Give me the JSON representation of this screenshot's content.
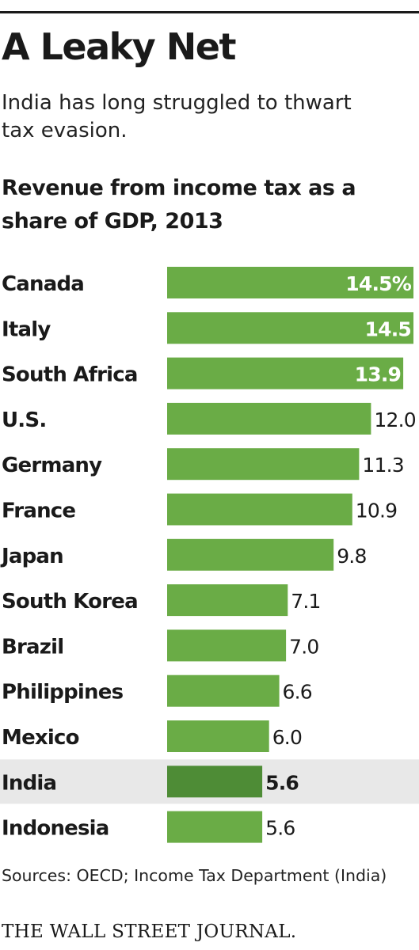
{
  "title": "A Leaky Net",
  "subtitle": "India has long struggled to thwart tax evasion.",
  "source": "Sources: OECD; Income Tax Department (India)",
  "publisher": "THE WALL STREET JOURNAL.",
  "colors": {
    "bar": "#6aac46",
    "highlight_bar": "#4e8c36",
    "highlight_row": "#e8e8e8",
    "text": "#1a1a1a"
  },
  "chart_data": {
    "type": "bar",
    "orientation": "horizontal",
    "title": "Revenue from income tax as a share of GDP, 2013",
    "xlabel": "",
    "ylabel": "",
    "unit": "%",
    "xlim": [
      0,
      14.5
    ],
    "grid": false,
    "legend": "none",
    "categories": [
      "Canada",
      "Italy",
      "South Africa",
      "U.S.",
      "Germany",
      "France",
      "Japan",
      "South Korea",
      "Brazil",
      "Philippines",
      "Mexico",
      "India",
      "Indonesia"
    ],
    "values": [
      14.5,
      14.5,
      13.9,
      12.0,
      11.3,
      10.9,
      9.8,
      7.1,
      7.0,
      6.6,
      6.0,
      5.6,
      5.6
    ],
    "labels": [
      "14.5%",
      "14.5",
      "13.9",
      "12.0",
      "11.3",
      "10.9",
      "9.8",
      "7.1",
      "7.0",
      "6.6",
      "6.0",
      "5.6",
      "5.6"
    ],
    "highlight": "India"
  }
}
